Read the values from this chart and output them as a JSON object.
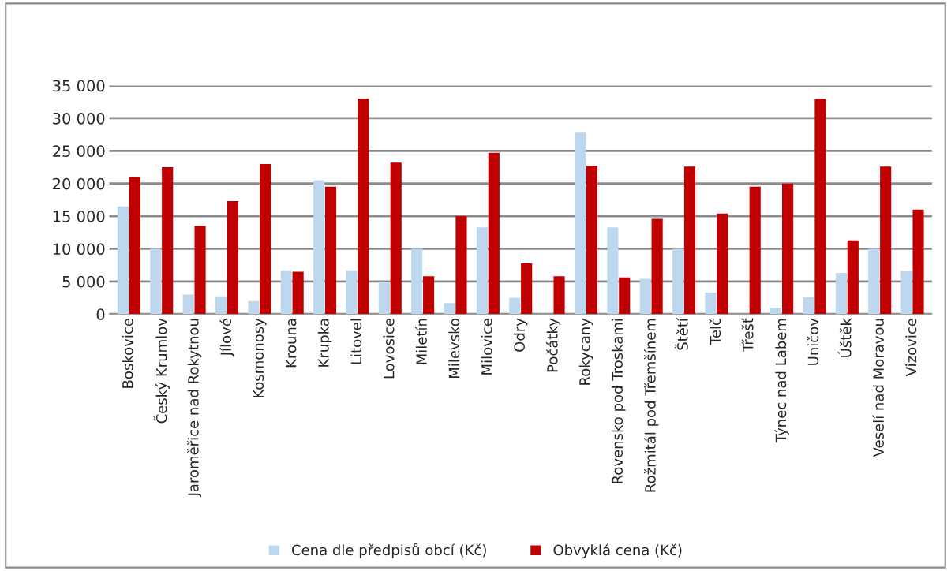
{
  "chart_data": {
    "type": "bar",
    "categories": [
      "Boskovice",
      "Český Krumlov",
      "Jaroměřice nad Rokytnou",
      "Jílové",
      "Kosmonosy",
      "Krouna",
      "Krupka",
      "Litovel",
      "Lovosice",
      "Miletín",
      "Milevsko",
      "Milovice",
      "Odry",
      "Počátky",
      "Rokycany",
      "Rovensko pod Troskami",
      "Rožmitál pod Třemšínem",
      "Štětí",
      "Telč",
      "Třešť",
      "Týnec nad Labem",
      "Uničov",
      "Úštěk",
      "Veselí nad Moravou",
      "Vizovice"
    ],
    "series": [
      {
        "name": "Cena dle předpisů obcí (Kč)",
        "color": "#bdd7ee",
        "values": [
          16500,
          10000,
          3000,
          2700,
          2000,
          6700,
          20500,
          6700,
          4800,
          10000,
          1700,
          13300,
          2500,
          0,
          27800,
          13300,
          5400,
          10000,
          3300,
          0,
          1000,
          2600,
          6300,
          10000,
          6600
        ]
      },
      {
        "name": "Obvyklá cena (Kč)",
        "color": "#c00000",
        "values": [
          21000,
          22500,
          13500,
          17300,
          23000,
          6500,
          19500,
          33000,
          23200,
          5800,
          15000,
          24700,
          7800,
          5800,
          22700,
          5600,
          14600,
          22600,
          15400,
          19500,
          20000,
          33000,
          11300,
          22600,
          16000
        ]
      }
    ],
    "ylim": [
      0,
      35000
    ],
    "yticks": [
      {
        "value": 0,
        "label": "0"
      },
      {
        "value": 5000,
        "label": "5 000"
      },
      {
        "value": 10000,
        "label": "10 000"
      },
      {
        "value": 15000,
        "label": "15 000"
      },
      {
        "value": 20000,
        "label": "20 000"
      },
      {
        "value": 25000,
        "label": "25 000"
      },
      {
        "value": 30000,
        "label": "30 000"
      },
      {
        "value": 35000,
        "label": "35 000"
      }
    ],
    "grid": "y",
    "legend": "bottom"
  }
}
